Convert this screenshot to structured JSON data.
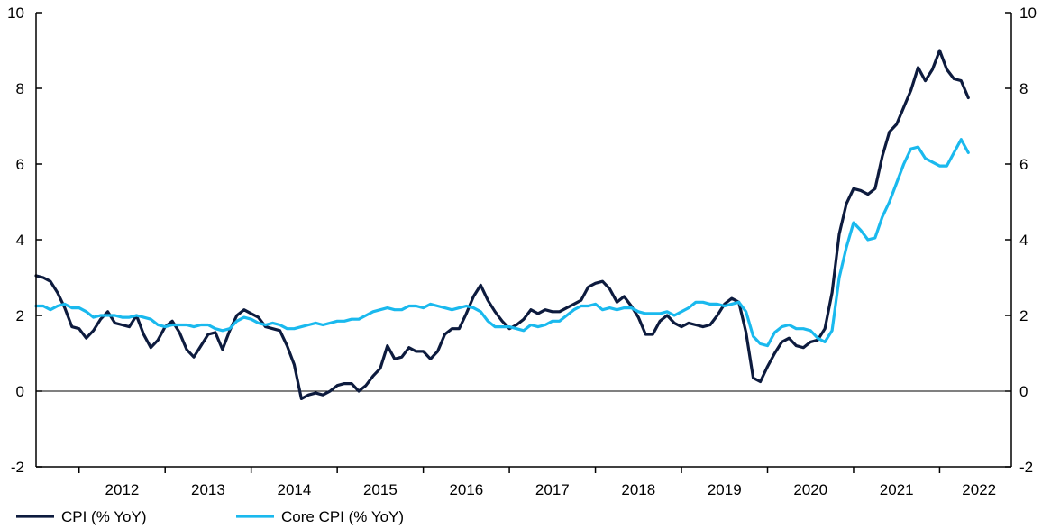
{
  "chart_data": {
    "type": "line",
    "title": "",
    "xlabel": "",
    "ylabel": "",
    "ylim": [
      -2,
      10
    ],
    "yticks": [
      -2,
      0,
      2,
      4,
      6,
      8,
      10
    ],
    "y_axes": "left-and-right",
    "grid": false,
    "zero_line": true,
    "x_start": "2011-07",
    "x_end": "2022-11",
    "year_labels": [
      "2012",
      "2013",
      "2014",
      "2015",
      "2016",
      "2017",
      "2018",
      "2019",
      "2020",
      "2021",
      "2022"
    ],
    "legend_position": "bottom-left",
    "series": [
      {
        "name": "CPI (% YoY)",
        "color": "#0d1b3e",
        "values": [
          3.05,
          3.0,
          2.9,
          2.6,
          2.2,
          1.7,
          1.65,
          1.4,
          1.6,
          1.9,
          2.1,
          1.8,
          1.75,
          1.7,
          2.0,
          1.5,
          1.15,
          1.35,
          1.7,
          1.85,
          1.55,
          1.1,
          0.9,
          1.2,
          1.5,
          1.55,
          1.1,
          1.6,
          2.0,
          2.15,
          2.05,
          1.95,
          1.7,
          1.65,
          1.6,
          1.2,
          0.7,
          -0.2,
          -0.1,
          -0.05,
          -0.1,
          0.0,
          0.15,
          0.2,
          0.2,
          0.0,
          0.15,
          0.4,
          0.6,
          1.2,
          0.85,
          0.9,
          1.15,
          1.05,
          1.05,
          0.85,
          1.05,
          1.5,
          1.65,
          1.65,
          2.05,
          2.5,
          2.8,
          2.4,
          2.1,
          1.85,
          1.65,
          1.75,
          1.9,
          2.15,
          2.05,
          2.15,
          2.1,
          2.1,
          2.2,
          2.3,
          2.4,
          2.75,
          2.85,
          2.9,
          2.7,
          2.35,
          2.5,
          2.25,
          1.95,
          1.5,
          1.5,
          1.85,
          2.0,
          1.8,
          1.7,
          1.8,
          1.75,
          1.7,
          1.75,
          2.0,
          2.3,
          2.45,
          2.35,
          1.55,
          0.35,
          0.25,
          0.65,
          1.0,
          1.3,
          1.4,
          1.2,
          1.15,
          1.3,
          1.35,
          1.65,
          2.6,
          4.15,
          4.95,
          5.35,
          5.3,
          5.2,
          5.35,
          6.2,
          6.85,
          7.05,
          7.5,
          7.95,
          8.55,
          8.2,
          8.5,
          9.0,
          8.5,
          8.25,
          8.2,
          7.75
        ]
      },
      {
        "name": "Core CPI (% YoY)",
        "color": "#1ab9ee",
        "values": [
          2.25,
          2.25,
          2.15,
          2.25,
          2.3,
          2.2,
          2.2,
          2.1,
          1.95,
          2.0,
          2.0,
          2.0,
          1.95,
          1.95,
          2.0,
          1.95,
          1.9,
          1.75,
          1.7,
          1.75,
          1.75,
          1.75,
          1.7,
          1.75,
          1.75,
          1.65,
          1.6,
          1.65,
          1.85,
          1.95,
          1.9,
          1.8,
          1.75,
          1.8,
          1.75,
          1.65,
          1.65,
          1.7,
          1.75,
          1.8,
          1.75,
          1.8,
          1.85,
          1.85,
          1.9,
          1.9,
          2.0,
          2.1,
          2.15,
          2.2,
          2.15,
          2.15,
          2.25,
          2.25,
          2.2,
          2.3,
          2.25,
          2.2,
          2.15,
          2.2,
          2.25,
          2.2,
          2.1,
          1.85,
          1.7,
          1.7,
          1.7,
          1.65,
          1.6,
          1.75,
          1.7,
          1.75,
          1.85,
          1.85,
          2.0,
          2.15,
          2.25,
          2.25,
          2.3,
          2.15,
          2.2,
          2.15,
          2.2,
          2.2,
          2.1,
          2.05,
          2.05,
          2.05,
          2.1,
          2.0,
          2.1,
          2.2,
          2.35,
          2.35,
          2.3,
          2.3,
          2.25,
          2.3,
          2.35,
          2.1,
          1.45,
          1.25,
          1.2,
          1.55,
          1.7,
          1.75,
          1.65,
          1.65,
          1.6,
          1.4,
          1.3,
          1.6,
          3.0,
          3.8,
          4.45,
          4.25,
          4.0,
          4.05,
          4.6,
          5.0,
          5.5,
          6.0,
          6.4,
          6.45,
          6.15,
          6.05,
          5.95,
          5.95,
          6.3,
          6.65,
          6.3
        ]
      }
    ]
  }
}
